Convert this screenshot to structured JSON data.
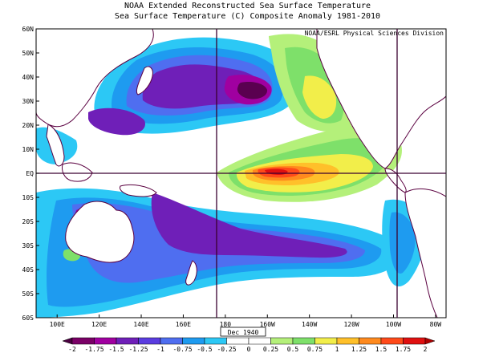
{
  "titles": {
    "line1": "NOAA Extended Reconstructed Sea Surface Temperature",
    "line2": "Sea Surface Temperature (C) Composite Anomaly 1981-2010"
  },
  "credit": "NOAA/ESRL Physical Sciences Division",
  "date_stamp": "Dec 1940",
  "lat_labels": [
    "60N",
    "50N",
    "40N",
    "30N",
    "20N",
    "10N",
    "EQ",
    "10S",
    "20S",
    "30S",
    "40S",
    "50S",
    "60S"
  ],
  "lon_labels": [
    "100E",
    "120E",
    "140E",
    "160E",
    "180",
    "160W",
    "140W",
    "120W",
    "100W",
    "80W"
  ],
  "colorbar": {
    "labels": [
      "-2",
      "-1.75",
      "-1.5",
      "-1.25",
      "-1",
      "-0.75",
      "-0.5",
      "-0.25",
      "0",
      "0.25",
      "0.5",
      "0.75",
      "1",
      "1.25",
      "1.5",
      "1.75",
      "2"
    ],
    "colors": [
      "#7a0066",
      "#a000a0",
      "#6f1fb8",
      "#5a3ce0",
      "#4f6ef0",
      "#1e9bf0",
      "#2cc8f5",
      "#ffffff",
      "#ffffff",
      "#b4f07a",
      "#7ee06a",
      "#f2ee4a",
      "#ffc02a",
      "#ff8a1e",
      "#ff4a1a",
      "#e01010"
    ],
    "under_color": "#4a0040",
    "over_color": "#b00000"
  },
  "map_colors": {
    "ocean_neutral": "#ffffff",
    "cool_light": "#2cc8f5",
    "cool_mid": "#1e9bf0",
    "cool_deep": "#4f6ef0",
    "cool_purple": "#6f1fb8",
    "cool_violet": "#a000a0",
    "cool_core": "#5a0050",
    "warm_light": "#b4f07a",
    "warm_green": "#7ee06a",
    "warm_yellow": "#f2ee4a",
    "warm_orange": "#ffc02a",
    "warm_dorange": "#ff8a1e",
    "warm_red": "#ff4a1a",
    "warm_core": "#e01010",
    "coast": "#5a0040",
    "grid_line": "#3a0030"
  }
}
